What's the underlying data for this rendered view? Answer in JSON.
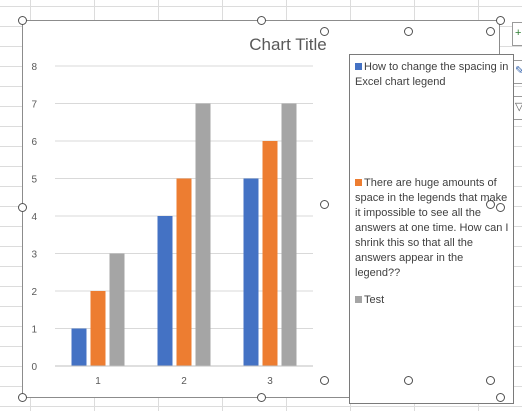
{
  "chart": {
    "title": "Chart Title"
  },
  "chart_data": {
    "type": "bar",
    "title": "Chart Title",
    "categories": [
      "1",
      "2",
      "3"
    ],
    "series": [
      {
        "name": "How to change the spacing in Excel chart legend",
        "values": [
          1,
          4,
          5
        ],
        "color": "#4472c4"
      },
      {
        "name": "There are huge amounts of space in the legends that make it impossible to see all the answers at one time. How can I shrink this so that all the answers appear in the legend??",
        "values": [
          2,
          5,
          6
        ],
        "color": "#ed7d31"
      },
      {
        "name": "Test",
        "values": [
          3,
          7,
          7
        ],
        "color": "#a5a5a5"
      }
    ],
    "yticks": [
      "0",
      "1",
      "2",
      "3",
      "4",
      "5",
      "6",
      "7",
      "8"
    ],
    "ylim": [
      0,
      8
    ],
    "grid": true,
    "legend": "right"
  },
  "side_panel": {
    "icons": [
      "plus-icon",
      "brush-icon",
      "filter-icon"
    ]
  }
}
